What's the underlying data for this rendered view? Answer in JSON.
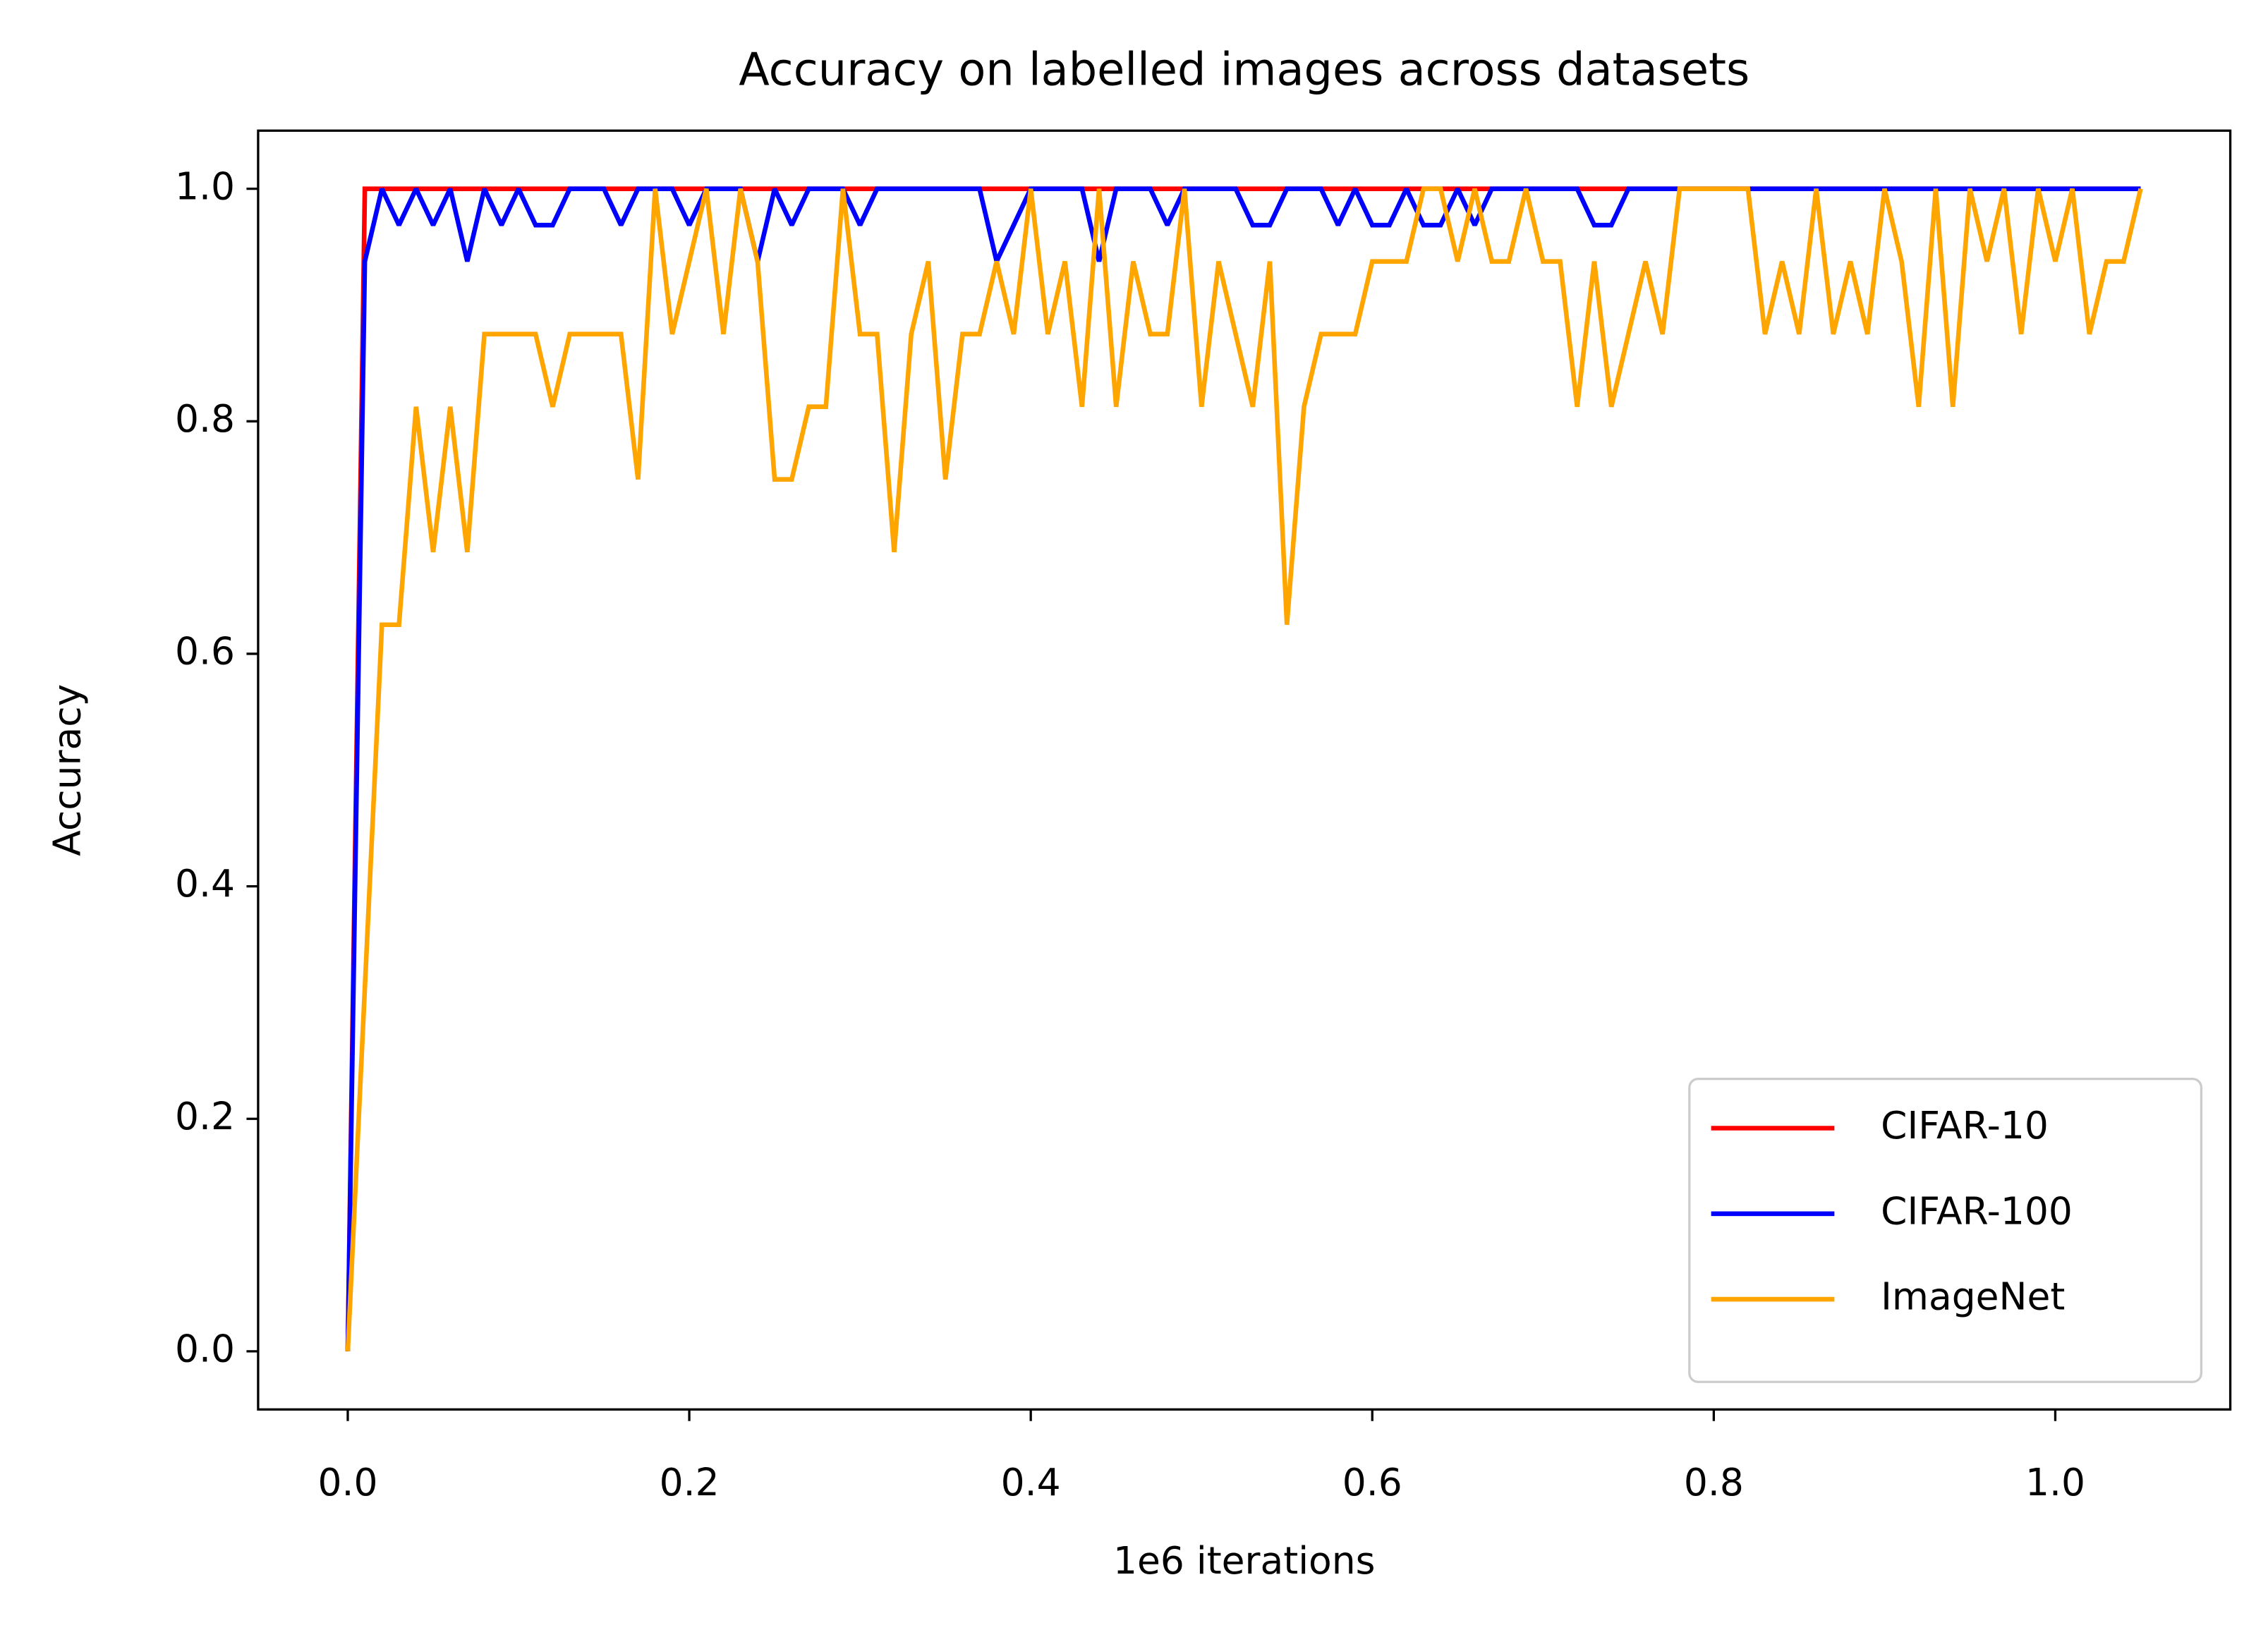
{
  "chart_data": {
    "type": "line",
    "title": "Accuracy on labelled images across datasets",
    "x_label": "1e6 iterations",
    "y_label": "Accuracy",
    "x": [
      0,
      0.01,
      0.02,
      0.03,
      0.04,
      0.05,
      0.06,
      0.07,
      0.08,
      0.09,
      0.1,
      0.11,
      0.12,
      0.13,
      0.14,
      0.15,
      0.16,
      0.17,
      0.18,
      0.19,
      0.2,
      0.21,
      0.22,
      0.23,
      0.24,
      0.25,
      0.26,
      0.27,
      0.28,
      0.29,
      0.3,
      0.31,
      0.32,
      0.33,
      0.34,
      0.35,
      0.36,
      0.37,
      0.38,
      0.39,
      0.4,
      0.41,
      0.42,
      0.43,
      0.44,
      0.45,
      0.46,
      0.47,
      0.48,
      0.49,
      0.5,
      0.51,
      0.52,
      0.53,
      0.54,
      0.55,
      0.56,
      0.57,
      0.58,
      0.59,
      0.6,
      0.61,
      0.62,
      0.63,
      0.64,
      0.65,
      0.66,
      0.67,
      0.68,
      0.69,
      0.7,
      0.71,
      0.72,
      0.73,
      0.74,
      0.75,
      0.76,
      0.77,
      0.78,
      0.79,
      0.8,
      0.81,
      0.82,
      0.83,
      0.84,
      0.85,
      0.86,
      0.87,
      0.88,
      0.89,
      0.9,
      0.91,
      0.92,
      0.93,
      0.94,
      0.95,
      0.96,
      0.97,
      0.98,
      0.99,
      1.0,
      1.01,
      1.02,
      1.03,
      1.04,
      1.05
    ],
    "series": [
      {
        "name": "CIFAR-10",
        "color": "#ff0000",
        "values": [
          0,
          1,
          1,
          1,
          1,
          1,
          1,
          1,
          1,
          1,
          1,
          1,
          1,
          1,
          1,
          1,
          1,
          1,
          1,
          1,
          1,
          1,
          1,
          1,
          1,
          1,
          1,
          1,
          1,
          1,
          1,
          1,
          1,
          1,
          1,
          1,
          1,
          1,
          1,
          1,
          1,
          1,
          1,
          1,
          1,
          1,
          1,
          1,
          1,
          1,
          1,
          1,
          1,
          1,
          1,
          1,
          1,
          1,
          1,
          1,
          1,
          1,
          1,
          1,
          1,
          1,
          1,
          1,
          1,
          1,
          1,
          1,
          1,
          1,
          1,
          1,
          1,
          1,
          1,
          1,
          1,
          1,
          1,
          1,
          1,
          1,
          1,
          1,
          1,
          1,
          1,
          1,
          1,
          1,
          1,
          1,
          1,
          1,
          1,
          1,
          1,
          1,
          1,
          1,
          1,
          1
        ]
      },
      {
        "name": "CIFAR-100",
        "color": "#0000ff",
        "values": [
          0,
          0.9375,
          1,
          0.96875,
          1,
          0.96875,
          1,
          0.9375,
          1,
          0.96875,
          1,
          0.96875,
          0.96875,
          1,
          1,
          1,
          0.96875,
          1,
          1,
          1,
          0.96875,
          1,
          1,
          1,
          0.9375,
          1,
          0.96875,
          1,
          1,
          1,
          0.96875,
          1,
          1,
          1,
          1,
          1,
          1,
          1,
          0.9375,
          0.96875,
          1,
          1,
          1,
          1,
          0.9375,
          1,
          1,
          1,
          0.96875,
          1,
          1,
          1,
          1,
          0.96875,
          0.96875,
          1,
          1,
          1,
          0.96875,
          1,
          0.96875,
          0.96875,
          1,
          0.96875,
          0.96875,
          1,
          0.96875,
          1,
          1,
          1,
          1,
          1,
          1,
          0.96875,
          0.96875,
          1,
          1,
          1,
          1,
          1,
          1,
          1,
          1,
          1,
          1,
          1,
          1,
          1,
          1,
          1,
          1,
          1,
          1,
          1,
          1,
          1,
          1,
          1,
          1,
          1,
          1,
          1,
          1,
          1,
          1,
          1
        ]
      },
      {
        "name": "ImageNet",
        "color": "#ffa500",
        "values": [
          0,
          0.3125,
          0.625,
          0.625,
          0.8125,
          0.6875,
          0.8125,
          0.6875,
          0.875,
          0.875,
          0.875,
          0.875,
          0.8125,
          0.875,
          0.875,
          0.875,
          0.875,
          0.75,
          1,
          0.875,
          0.9375,
          1,
          0.875,
          1,
          0.9375,
          0.75,
          0.75,
          0.8125,
          0.8125,
          1,
          0.875,
          0.875,
          0.6875,
          0.875,
          0.9375,
          0.75,
          0.875,
          0.875,
          0.9375,
          0.875,
          1,
          0.875,
          0.9375,
          0.8125,
          1,
          0.8125,
          0.9375,
          0.875,
          0.875,
          1,
          0.8125,
          0.9375,
          0.875,
          0.8125,
          0.9375,
          0.625,
          0.8125,
          0.875,
          0.875,
          0.875,
          0.9375,
          0.9375,
          0.9375,
          1,
          1,
          0.9375,
          1,
          0.9375,
          0.9375,
          1,
          0.9375,
          0.9375,
          0.8125,
          0.9375,
          0.8125,
          0.875,
          0.9375,
          0.875,
          1,
          1,
          1,
          1,
          1,
          0.875,
          0.9375,
          0.875,
          1,
          0.875,
          0.9375,
          0.875,
          1,
          0.9375,
          0.8125,
          1,
          0.8125,
          1,
          0.9375,
          1,
          0.875,
          1,
          0.9375,
          1,
          0.875,
          0.9375,
          0.9375,
          1
        ]
      }
    ],
    "xlim": [
      -0.0525,
      1.1025
    ],
    "ylim": [
      -0.05,
      1.05
    ],
    "xticks": [
      {
        "value": 0,
        "label": "0.0"
      },
      0.2,
      0.4,
      0.6,
      0.8,
      {
        "value": 1,
        "label": "1.0"
      }
    ],
    "yticks": [
      {
        "value": 0,
        "label": "0.0"
      },
      0.2,
      0.4,
      0.6,
      0.8,
      {
        "value": 1,
        "label": "1.0"
      }
    ],
    "grid": false,
    "legend": "lower right"
  }
}
